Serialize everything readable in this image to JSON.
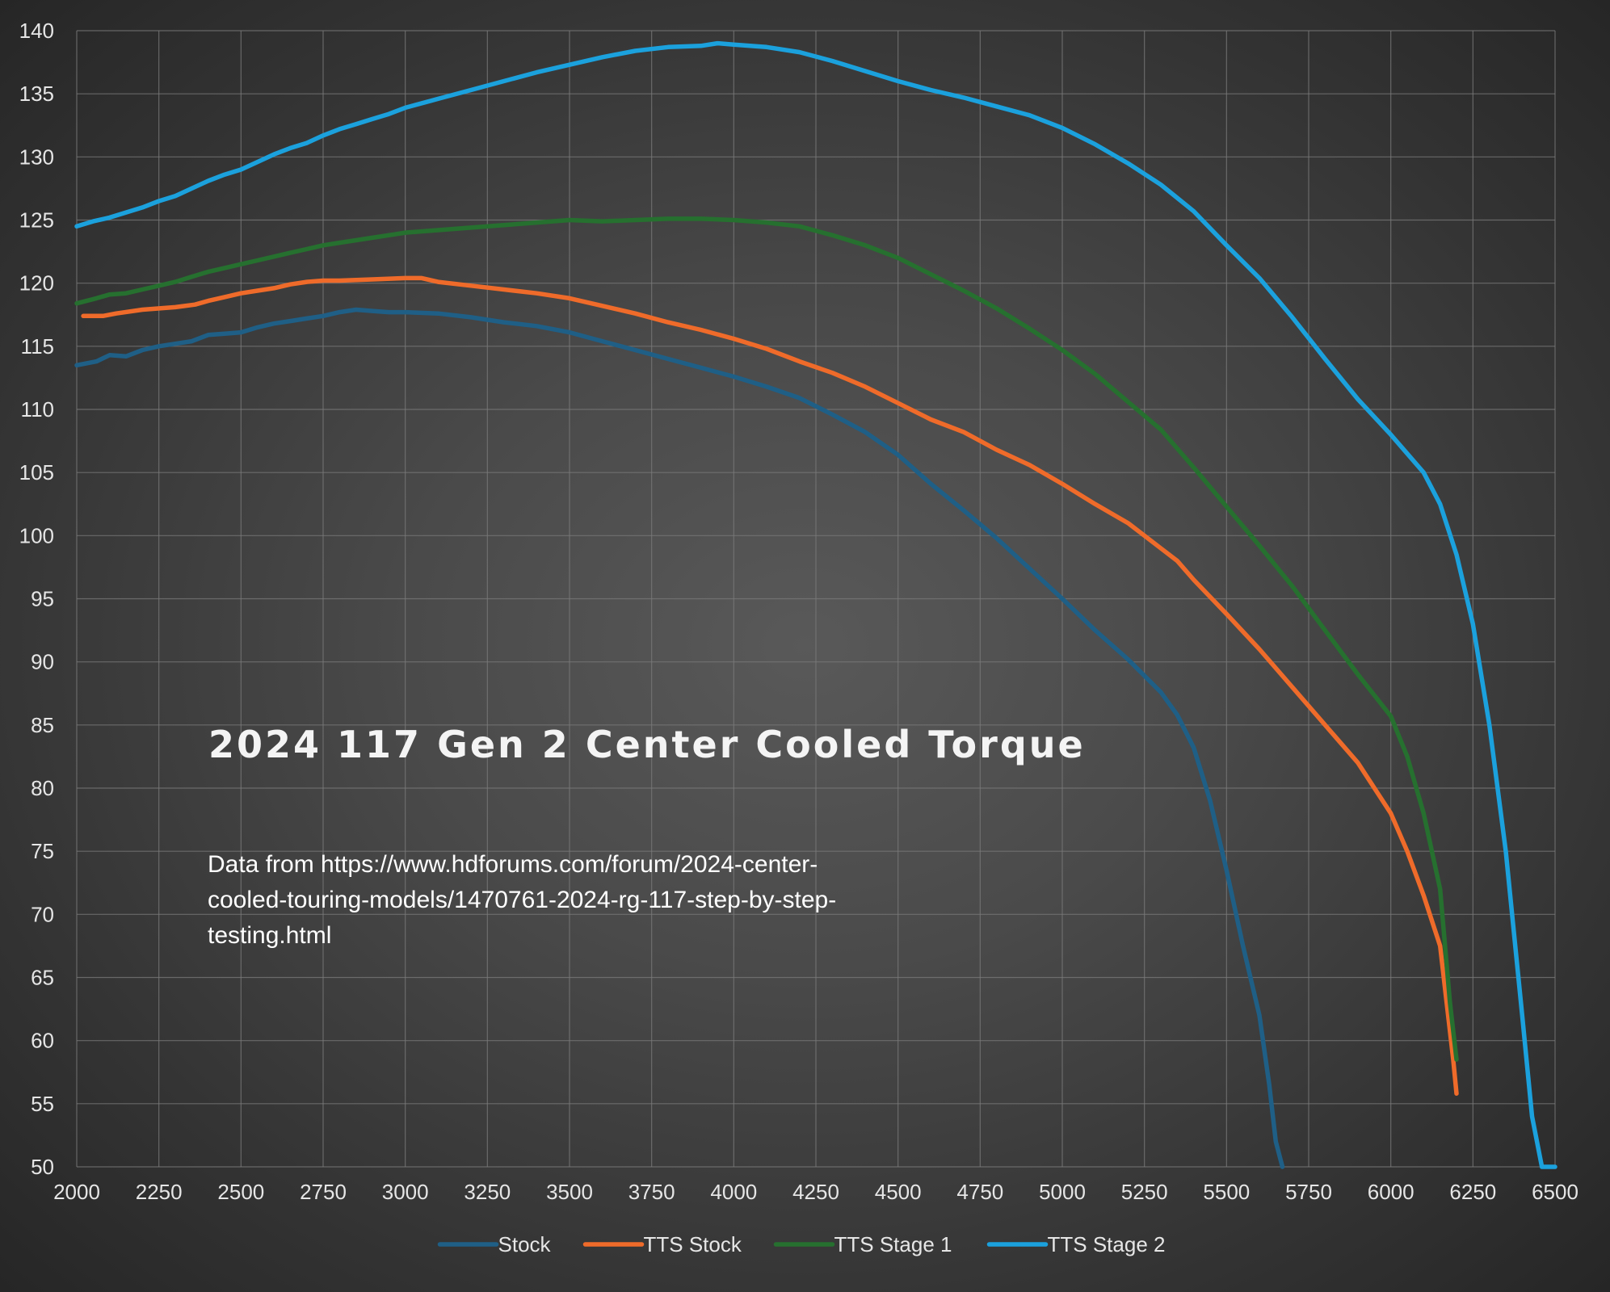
{
  "chart_data": {
    "type": "line",
    "title": "2024 117 Gen 2 Center Cooled Torque",
    "annotation": [
      "Data from https://www.hdforums.com/forum/2024-center-",
      "cooled-touring-models/1470761-2024-rg-117-step-by-step-",
      "testing.html"
    ],
    "xlim": [
      2000,
      6500
    ],
    "ylim": [
      50,
      140
    ],
    "xticks": [
      2000,
      2250,
      2500,
      2750,
      3000,
      3250,
      3500,
      3750,
      4000,
      4250,
      4500,
      4750,
      5000,
      5250,
      5500,
      5750,
      6000,
      6250,
      6500
    ],
    "yticks": [
      50,
      55,
      60,
      65,
      70,
      75,
      80,
      85,
      90,
      95,
      100,
      105,
      110,
      115,
      120,
      125,
      130,
      135,
      140
    ],
    "grid": true,
    "legend_position": "bottom",
    "series": [
      {
        "name": "Stock",
        "color": "#1f5f86",
        "x": [
          2000,
          2060,
          2100,
          2150,
          2200,
          2250,
          2300,
          2350,
          2400,
          2450,
          2500,
          2550,
          2600,
          2650,
          2700,
          2750,
          2800,
          2850,
          2900,
          2950,
          3000,
          3100,
          3200,
          3300,
          3400,
          3500,
          3600,
          3700,
          3800,
          3900,
          4000,
          4100,
          4200,
          4300,
          4400,
          4500,
          4600,
          4700,
          4800,
          4900,
          5000,
          5100,
          5200,
          5300,
          5350,
          5400,
          5450,
          5500,
          5550,
          5600,
          5630,
          5650,
          5670
        ],
        "values": [
          113.5,
          113.8,
          114.3,
          114.2,
          114.7,
          115.0,
          115.2,
          115.4,
          115.9,
          116.0,
          116.1,
          116.5,
          116.8,
          117.0,
          117.2,
          117.4,
          117.7,
          117.9,
          117.8,
          117.7,
          117.7,
          117.6,
          117.3,
          116.9,
          116.6,
          116.1,
          115.4,
          114.7,
          114.0,
          113.3,
          112.6,
          111.8,
          110.9,
          109.6,
          108.2,
          106.4,
          104.1,
          102.0,
          99.8,
          97.4,
          95.0,
          92.5,
          90.2,
          87.6,
          85.8,
          83.2,
          79.0,
          73.5,
          67.5,
          62.0,
          56.5,
          52.0,
          50.0
        ]
      },
      {
        "name": "TTS Stock",
        "color": "#ef6b2a",
        "x": [
          2020,
          2080,
          2120,
          2200,
          2300,
          2360,
          2400,
          2450,
          2500,
          2550,
          2600,
          2650,
          2700,
          2750,
          2800,
          2900,
          3000,
          3050,
          3100,
          3200,
          3300,
          3400,
          3500,
          3600,
          3700,
          3800,
          3900,
          4000,
          4100,
          4200,
          4300,
          4400,
          4500,
          4600,
          4700,
          4800,
          4900,
          5000,
          5100,
          5200,
          5300,
          5350,
          5400,
          5500,
          5600,
          5700,
          5800,
          5900,
          6000,
          6050,
          6100,
          6150,
          6170,
          6190,
          6200
        ],
        "values": [
          117.4,
          117.4,
          117.6,
          117.9,
          118.1,
          118.3,
          118.6,
          118.9,
          119.2,
          119.4,
          119.6,
          119.9,
          120.1,
          120.2,
          120.2,
          120.3,
          120.4,
          120.4,
          120.1,
          119.8,
          119.5,
          119.2,
          118.8,
          118.2,
          117.6,
          116.9,
          116.3,
          115.6,
          114.8,
          113.8,
          112.9,
          111.8,
          110.5,
          109.2,
          108.2,
          106.8,
          105.6,
          104.1,
          102.5,
          101.0,
          99.0,
          98.0,
          96.5,
          93.8,
          91.0,
          88.0,
          85.0,
          82.0,
          78.0,
          75.0,
          71.5,
          67.5,
          63.0,
          58.5,
          55.8
        ]
      },
      {
        "name": "TTS Stage 1",
        "color": "#26702f",
        "x": [
          2000,
          2060,
          2100,
          2150,
          2200,
          2250,
          2300,
          2350,
          2400,
          2450,
          2500,
          2550,
          2600,
          2650,
          2700,
          2750,
          2800,
          2850,
          2900,
          2950,
          3000,
          3100,
          3200,
          3300,
          3400,
          3500,
          3600,
          3700,
          3800,
          3900,
          4000,
          4100,
          4200,
          4300,
          4400,
          4500,
          4600,
          4700,
          4800,
          4900,
          5000,
          5100,
          5200,
          5300,
          5400,
          5500,
          5600,
          5700,
          5800,
          5900,
          6000,
          6050,
          6100,
          6150,
          6180,
          6200
        ],
        "values": [
          118.4,
          118.8,
          119.1,
          119.2,
          119.5,
          119.8,
          120.1,
          120.5,
          120.9,
          121.2,
          121.5,
          121.8,
          122.1,
          122.4,
          122.7,
          123.0,
          123.2,
          123.4,
          123.6,
          123.8,
          124.0,
          124.2,
          124.4,
          124.6,
          124.8,
          125.0,
          124.9,
          125.0,
          125.1,
          125.1,
          125.0,
          124.8,
          124.5,
          123.8,
          123.0,
          122.0,
          120.7,
          119.4,
          118.0,
          116.4,
          114.7,
          112.8,
          110.6,
          108.4,
          105.4,
          102.3,
          99.2,
          96.0,
          92.5,
          89.0,
          85.7,
          82.5,
          78.0,
          72.0,
          63.0,
          58.5
        ]
      },
      {
        "name": "TTS Stage 2",
        "color": "#1ba1dd",
        "x": [
          2000,
          2050,
          2100,
          2150,
          2200,
          2250,
          2300,
          2350,
          2400,
          2450,
          2500,
          2550,
          2600,
          2650,
          2700,
          2750,
          2800,
          2850,
          2900,
          2950,
          3000,
          3100,
          3200,
          3300,
          3400,
          3500,
          3600,
          3700,
          3800,
          3900,
          3950,
          4000,
          4100,
          4200,
          4300,
          4400,
          4500,
          4600,
          4700,
          4800,
          4900,
          5000,
          5100,
          5200,
          5300,
          5400,
          5500,
          5600,
          5700,
          5800,
          5900,
          6000,
          6100,
          6150,
          6200,
          6250,
          6300,
          6350,
          6400,
          6430,
          6460,
          6480,
          6500
        ],
        "values": [
          124.5,
          124.9,
          125.2,
          125.6,
          126.0,
          126.5,
          126.9,
          127.5,
          128.1,
          128.6,
          129.0,
          129.6,
          130.2,
          130.7,
          131.1,
          131.7,
          132.2,
          132.6,
          133.0,
          133.4,
          133.9,
          134.6,
          135.3,
          136.0,
          136.7,
          137.3,
          137.9,
          138.4,
          138.7,
          138.8,
          139.0,
          138.9,
          138.7,
          138.3,
          137.6,
          136.8,
          136.0,
          135.3,
          134.7,
          134.0,
          133.3,
          132.3,
          131.0,
          129.5,
          127.8,
          125.7,
          123.0,
          120.4,
          117.3,
          114.0,
          110.8,
          108.0,
          105.0,
          102.5,
          98.5,
          93.0,
          85.0,
          75.0,
          62.0,
          54.0,
          50.0,
          50.0,
          50.0
        ]
      }
    ]
  }
}
